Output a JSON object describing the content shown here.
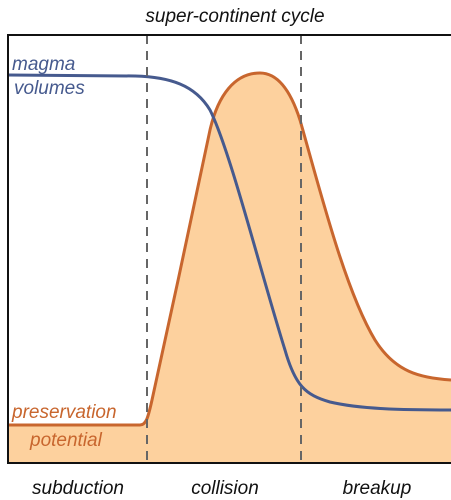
{
  "title": "super-continent cycle",
  "curves": [
    {
      "label_lines": [
        "magma",
        "volumes"
      ]
    },
    {
      "label_lines": [
        "preservation",
        "potential"
      ]
    }
  ],
  "phases": [
    "subduction",
    "collision",
    "breakup"
  ]
}
